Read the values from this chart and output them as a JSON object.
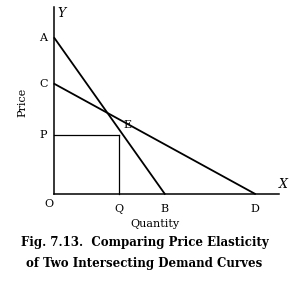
{
  "title_line1": "Fig. 7.13.  Comparing Price Elasticity",
  "title_line2": "of Two Intersecting Demand Curves",
  "xlabel": "Quantity",
  "ylabel": "Price",
  "background_color": "#ffffff",
  "line_color": "#000000",
  "A": [
    0,
    8.5
  ],
  "B": [
    5.5,
    0
  ],
  "C": [
    0,
    6.0
  ],
  "D": [
    10.0,
    0
  ],
  "E": [
    3.2,
    3.2
  ],
  "P": 3.2,
  "Q": 3.2,
  "xlim": [
    -0.3,
    11.5
  ],
  "ylim": [
    -0.8,
    10.5
  ],
  "axis_label_fontsize": 8,
  "title_fontsize": 8.5,
  "point_label_fontsize": 8
}
